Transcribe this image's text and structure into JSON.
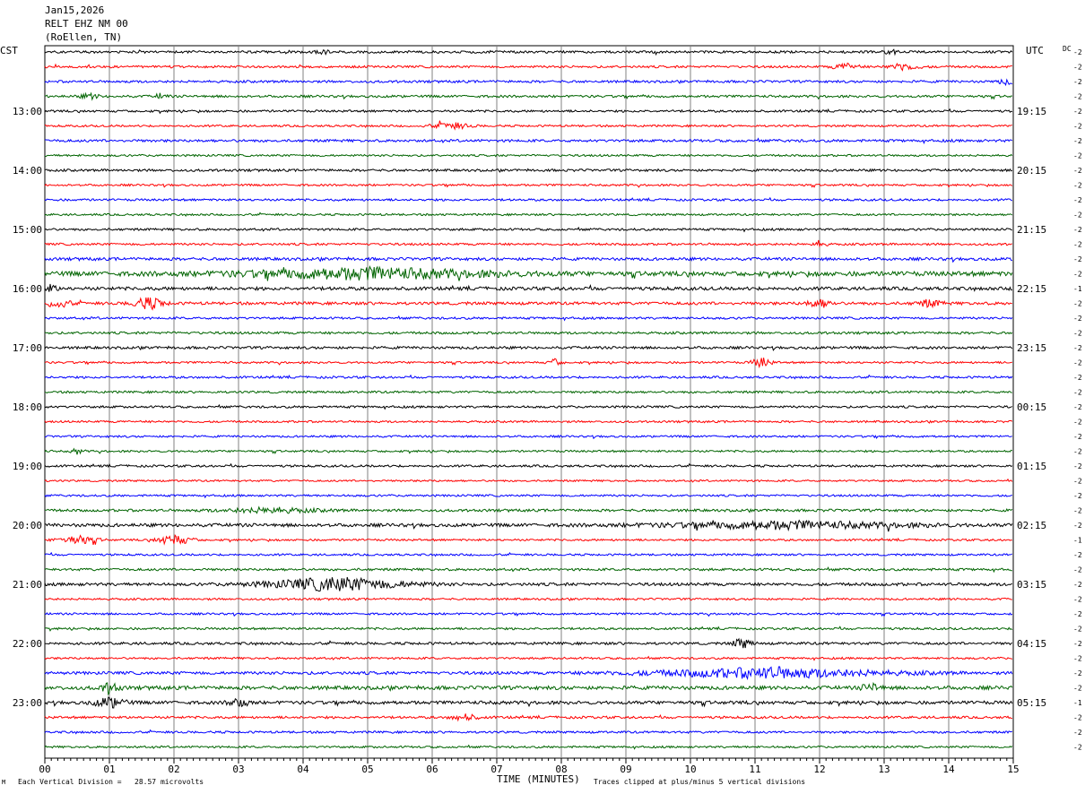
{
  "header": {
    "date": "Jan15,2026",
    "station": "RELT EHZ NM 00",
    "location": "(RoEllen, TN)"
  },
  "left_axis_label": "CST",
  "right_axis_label": "UTC",
  "dc_label": "DC",
  "footer": {
    "scale_text": "Each Vertical Division =   28.57 microvolts",
    "x_axis_title": "TIME (MINUTES)",
    "clip_text": "Traces clipped at plus/minus 5 vertical divisions",
    "corner_mark": "M"
  },
  "colors": {
    "trace_cycle": [
      "#000000",
      "#ff0000",
      "#0000ff",
      "#006400"
    ],
    "grid": "#808080"
  },
  "chart_data": {
    "type": "seismogram",
    "title": "RELT EHZ NM 00",
    "xlabel": "TIME (MINUTES)",
    "x_ticks": [
      "00",
      "01",
      "02",
      "03",
      "04",
      "05",
      "06",
      "07",
      "08",
      "09",
      "10",
      "11",
      "12",
      "13",
      "14",
      "15"
    ],
    "xlim": [
      0,
      15
    ],
    "trace_minutes": 15,
    "trace_count": 48,
    "left_hour_labels": [
      {
        "trace": 4,
        "label": "13:00"
      },
      {
        "trace": 8,
        "label": "14:00"
      },
      {
        "trace": 12,
        "label": "15:00"
      },
      {
        "trace": 16,
        "label": "16:00"
      },
      {
        "trace": 20,
        "label": "17:00"
      },
      {
        "trace": 24,
        "label": "18:00"
      },
      {
        "trace": 28,
        "label": "19:00"
      },
      {
        "trace": 32,
        "label": "20:00"
      },
      {
        "trace": 36,
        "label": "21:00"
      },
      {
        "trace": 40,
        "label": "22:00"
      },
      {
        "trace": 44,
        "label": "23:00"
      }
    ],
    "right_hour_labels": [
      {
        "trace": 4,
        "label": "19:15"
      },
      {
        "trace": 8,
        "label": "20:15"
      },
      {
        "trace": 12,
        "label": "21:15"
      },
      {
        "trace": 16,
        "label": "22:15"
      },
      {
        "trace": 20,
        "label": "23:15"
      },
      {
        "trace": 24,
        "label": "00:15"
      },
      {
        "trace": 28,
        "label": "01:15"
      },
      {
        "trace": 32,
        "label": "02:15"
      },
      {
        "trace": 36,
        "label": "03:15"
      },
      {
        "trace": 40,
        "label": "04:15"
      },
      {
        "trace": 44,
        "label": "05:15"
      }
    ],
    "dc_offsets": [
      "-2",
      "-2",
      "-2",
      "-2",
      "-2",
      "-2",
      "-2",
      "-2",
      "-2",
      "-2",
      "-2",
      "-2",
      "-2",
      "-2",
      "-2",
      "-2",
      "-1",
      "-2",
      "-2",
      "-2",
      "-2",
      "-2",
      "-2",
      "-2",
      "-2",
      "-2",
      "-2",
      "-2",
      "-2",
      "-2",
      "-2",
      "-2",
      "-2",
      "-1",
      "-2",
      "-2",
      "-2",
      "-2",
      "-2",
      "-2",
      "-2",
      "-2",
      "-2",
      "-2",
      "-1",
      "-2",
      "-2",
      "-2"
    ],
    "trace_noise": [
      1.3,
      1.2,
      1.3,
      1.3,
      1.2,
      1.1,
      1.4,
      1.1,
      1.3,
      1.1,
      1.2,
      1.1,
      1.2,
      1.2,
      1.6,
      2.5,
      1.8,
      1.6,
      1.2,
      1.3,
      1.4,
      1.1,
      1.2,
      1.2,
      1.2,
      1.1,
      1.1,
      1.1,
      1.2,
      1.0,
      1.1,
      1.4,
      1.8,
      1.1,
      1.1,
      1.3,
      1.6,
      1.1,
      1.1,
      1.2,
      1.4,
      1.1,
      1.6,
      2.0,
      1.8,
      1.3,
      1.2,
      1.1
    ],
    "events": [
      {
        "trace": 0,
        "minute": 4.3,
        "amp": 4,
        "width": 0.2
      },
      {
        "trace": 0,
        "minute": 13.1,
        "amp": 3,
        "width": 0.2
      },
      {
        "trace": 1,
        "minute": 12.4,
        "amp": 4,
        "width": 0.4
      },
      {
        "trace": 1,
        "minute": 13.3,
        "amp": 4,
        "width": 0.5
      },
      {
        "trace": 2,
        "minute": 14.9,
        "amp": 3,
        "width": 0.3
      },
      {
        "trace": 3,
        "minute": 0.7,
        "amp": 3,
        "width": 0.3
      },
      {
        "trace": 3,
        "minute": 1.8,
        "amp": 3,
        "width": 0.2
      },
      {
        "trace": 5,
        "minute": 6.3,
        "amp": 4,
        "width": 0.6
      },
      {
        "trace": 13,
        "minute": 12.0,
        "amp": 4,
        "width": 0.2
      },
      {
        "trace": 15,
        "minute": 5.0,
        "amp": 6,
        "width": 4.0
      },
      {
        "trace": 16,
        "minute": 0.1,
        "amp": 4,
        "width": 0.2
      },
      {
        "trace": 17,
        "minute": 0.2,
        "amp": 5,
        "width": 0.4
      },
      {
        "trace": 17,
        "minute": 1.6,
        "amp": 7,
        "width": 0.5
      },
      {
        "trace": 17,
        "minute": 12.0,
        "amp": 5,
        "width": 0.4
      },
      {
        "trace": 17,
        "minute": 13.7,
        "amp": 4,
        "width": 0.4
      },
      {
        "trace": 21,
        "minute": 7.9,
        "amp": 4,
        "width": 0.2
      },
      {
        "trace": 21,
        "minute": 11.1,
        "amp": 6,
        "width": 0.3
      },
      {
        "trace": 27,
        "minute": 0.5,
        "amp": 3,
        "width": 0.2
      },
      {
        "trace": 31,
        "minute": 3.5,
        "amp": 3,
        "width": 1.5
      },
      {
        "trace": 32,
        "minute": 11.5,
        "amp": 4,
        "width": 4.0
      },
      {
        "trace": 33,
        "minute": 0.5,
        "amp": 5,
        "width": 0.6
      },
      {
        "trace": 33,
        "minute": 2.0,
        "amp": 7,
        "width": 0.5
      },
      {
        "trace": 36,
        "minute": 4.5,
        "amp": 8,
        "width": 2.2
      },
      {
        "trace": 40,
        "minute": 10.8,
        "amp": 6,
        "width": 0.3
      },
      {
        "trace": 42,
        "minute": 11.2,
        "amp": 6,
        "width": 3.8
      },
      {
        "trace": 43,
        "minute": 1.0,
        "amp": 6,
        "width": 0.3
      },
      {
        "trace": 43,
        "minute": 12.8,
        "amp": 5,
        "width": 0.3
      },
      {
        "trace": 44,
        "minute": 1.0,
        "amp": 6,
        "width": 0.5
      },
      {
        "trace": 44,
        "minute": 3.0,
        "amp": 6,
        "width": 0.3
      },
      {
        "trace": 45,
        "minute": 6.5,
        "amp": 4,
        "width": 0.4
      }
    ]
  }
}
